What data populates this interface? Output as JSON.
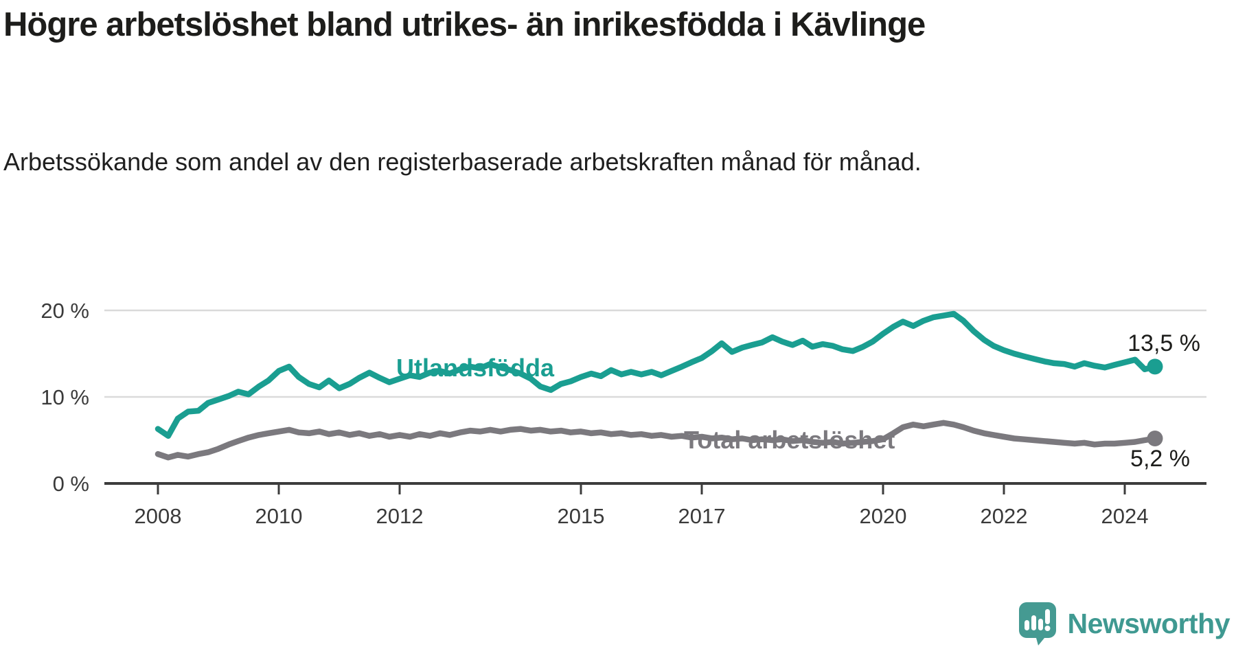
{
  "header": {
    "title": "Högre arbetslöshet bland utrikes- än inrikesfödda i Kävlinge",
    "subtitle": "Arbetssökande som andel av den registerbaserade arbetskraften månad för månad."
  },
  "chart_data": {
    "type": "line",
    "grid": "horizontal",
    "x_range": [
      2008,
      2024.5
    ],
    "ylim": [
      0,
      22
    ],
    "y_ticks": [
      {
        "value": 0,
        "label": "0 %"
      },
      {
        "value": 10,
        "label": "10 %"
      },
      {
        "value": 20,
        "label": "20 %"
      }
    ],
    "x_ticks": [
      {
        "value": 2008,
        "label": "2008"
      },
      {
        "value": 2010,
        "label": "2010"
      },
      {
        "value": 2012,
        "label": "2012"
      },
      {
        "value": 2015,
        "label": "2015"
      },
      {
        "value": 2017,
        "label": "2017"
      },
      {
        "value": 2020,
        "label": "2020"
      },
      {
        "value": 2022,
        "label": "2022"
      },
      {
        "value": 2024,
        "label": "2024"
      }
    ],
    "x": [
      2008.0,
      2008.17,
      2008.33,
      2008.5,
      2008.67,
      2008.83,
      2009.0,
      2009.17,
      2009.33,
      2009.5,
      2009.67,
      2009.83,
      2010.0,
      2010.17,
      2010.33,
      2010.5,
      2010.67,
      2010.83,
      2011.0,
      2011.17,
      2011.33,
      2011.5,
      2011.67,
      2011.83,
      2012.0,
      2012.17,
      2012.33,
      2012.5,
      2012.67,
      2012.83,
      2013.0,
      2013.17,
      2013.33,
      2013.5,
      2013.67,
      2013.83,
      2014.0,
      2014.17,
      2014.33,
      2014.5,
      2014.67,
      2014.83,
      2015.0,
      2015.17,
      2015.33,
      2015.5,
      2015.67,
      2015.83,
      2016.0,
      2016.17,
      2016.33,
      2016.5,
      2016.67,
      2016.83,
      2017.0,
      2017.17,
      2017.33,
      2017.5,
      2017.67,
      2017.83,
      2018.0,
      2018.17,
      2018.33,
      2018.5,
      2018.67,
      2018.83,
      2019.0,
      2019.17,
      2019.33,
      2019.5,
      2019.67,
      2019.83,
      2020.0,
      2020.17,
      2020.33,
      2020.5,
      2020.67,
      2020.83,
      2021.0,
      2021.17,
      2021.33,
      2021.5,
      2021.67,
      2021.83,
      2022.0,
      2022.17,
      2022.33,
      2022.5,
      2022.67,
      2022.83,
      2023.0,
      2023.17,
      2023.33,
      2023.5,
      2023.67,
      2023.83,
      2024.0,
      2024.17,
      2024.33,
      2024.5
    ],
    "series": [
      {
        "name": "Utlandsfödda",
        "color": "#1a9e91",
        "end_label": "13,5 %",
        "end_value": 13.5,
        "values": [
          6.3,
          5.5,
          7.5,
          8.3,
          8.4,
          9.3,
          9.7,
          10.1,
          10.6,
          10.3,
          11.2,
          11.9,
          13.0,
          13.5,
          12.3,
          11.5,
          11.1,
          11.9,
          11.0,
          11.5,
          12.2,
          12.8,
          12.2,
          11.7,
          12.1,
          12.5,
          12.3,
          12.8,
          13.0,
          12.7,
          13.2,
          13.5,
          13.3,
          13.8,
          13.4,
          13.1,
          12.7,
          12.1,
          11.2,
          10.8,
          11.5,
          11.8,
          12.3,
          12.7,
          12.4,
          13.1,
          12.6,
          12.9,
          12.6,
          12.9,
          12.5,
          13.0,
          13.5,
          14.0,
          14.5,
          15.3,
          16.2,
          15.2,
          15.7,
          16.0,
          16.3,
          16.9,
          16.4,
          16.0,
          16.5,
          15.8,
          16.1,
          15.9,
          15.5,
          15.3,
          15.8,
          16.4,
          17.3,
          18.1,
          18.7,
          18.2,
          18.8,
          19.2,
          19.4,
          19.6,
          18.8,
          17.6,
          16.6,
          15.9,
          15.4,
          15.0,
          14.7,
          14.4,
          14.1,
          13.9,
          13.8,
          13.5,
          13.9,
          13.6,
          13.4,
          13.7,
          14.0,
          14.3,
          13.2,
          13.5
        ]
      },
      {
        "name": "Total arbetslöshet",
        "color": "#7b797e",
        "end_label": "5,2 %",
        "end_value": 5.2,
        "values": [
          3.4,
          3.0,
          3.3,
          3.1,
          3.4,
          3.6,
          4.0,
          4.5,
          4.9,
          5.3,
          5.6,
          5.8,
          6.0,
          6.2,
          5.9,
          5.8,
          6.0,
          5.7,
          5.9,
          5.6,
          5.8,
          5.5,
          5.7,
          5.4,
          5.6,
          5.4,
          5.7,
          5.5,
          5.8,
          5.6,
          5.9,
          6.1,
          6.0,
          6.2,
          6.0,
          6.2,
          6.3,
          6.1,
          6.2,
          6.0,
          6.1,
          5.9,
          6.0,
          5.8,
          5.9,
          5.7,
          5.8,
          5.6,
          5.7,
          5.5,
          5.6,
          5.4,
          5.5,
          5.3,
          5.4,
          5.2,
          5.3,
          5.1,
          5.2,
          5.0,
          5.1,
          5.0,
          5.1,
          4.9,
          5.0,
          4.8,
          4.7,
          4.8,
          4.6,
          4.7,
          4.8,
          4.9,
          5.1,
          5.8,
          6.5,
          6.8,
          6.6,
          6.8,
          7.0,
          6.8,
          6.5,
          6.1,
          5.8,
          5.6,
          5.4,
          5.2,
          5.1,
          5.0,
          4.9,
          4.8,
          4.7,
          4.6,
          4.7,
          4.5,
          4.6,
          4.6,
          4.7,
          4.8,
          5.0,
          5.2
        ]
      }
    ]
  },
  "footer": {
    "brand": "Newsworthy"
  },
  "colors": {
    "teal": "#1a9e91",
    "gray": "#7b797e",
    "axis": "#3c3c3c",
    "gridline": "#dadada",
    "text": "#1d1d1b",
    "brand_teal": "#3f9991",
    "logo_bubble": "#459a92"
  }
}
